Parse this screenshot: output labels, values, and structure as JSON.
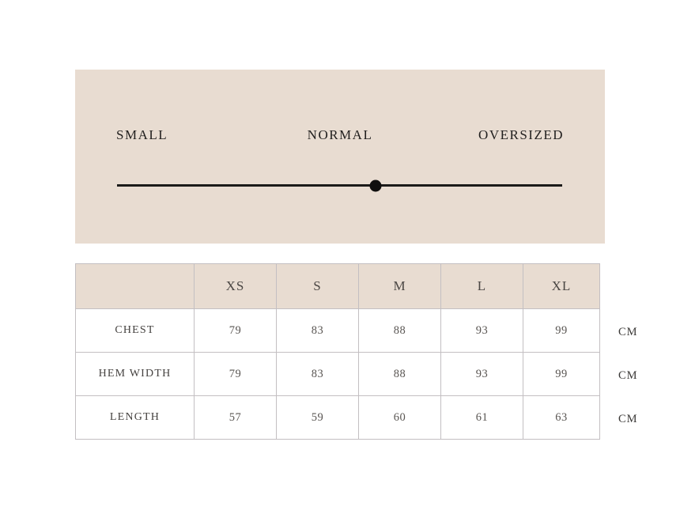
{
  "colors": {
    "panel_background": "#e8dcd1",
    "table_header_background": "#e8dcd1",
    "table_border": "#c3bfc2",
    "track_line": "#1b1a19",
    "marker_dot": "#100f0e",
    "label_text": "#211f1e",
    "table_text": "#454240"
  },
  "fit_scale": {
    "labels": [
      "SMALL",
      "NORMAL",
      "OVERSIZED"
    ],
    "marker_position_pct": 58
  },
  "size_table": {
    "unit": "CM",
    "columns": [
      "XS",
      "S",
      "M",
      "L",
      "XL"
    ],
    "rows": [
      {
        "label": "CHEST",
        "values": [
          "79",
          "83",
          "88",
          "93",
          "99"
        ]
      },
      {
        "label": "HEM WIDTH",
        "values": [
          "79",
          "83",
          "88",
          "93",
          "99"
        ]
      },
      {
        "label": "LENGTH",
        "values": [
          "57",
          "59",
          "60",
          "61",
          "63"
        ]
      }
    ]
  }
}
